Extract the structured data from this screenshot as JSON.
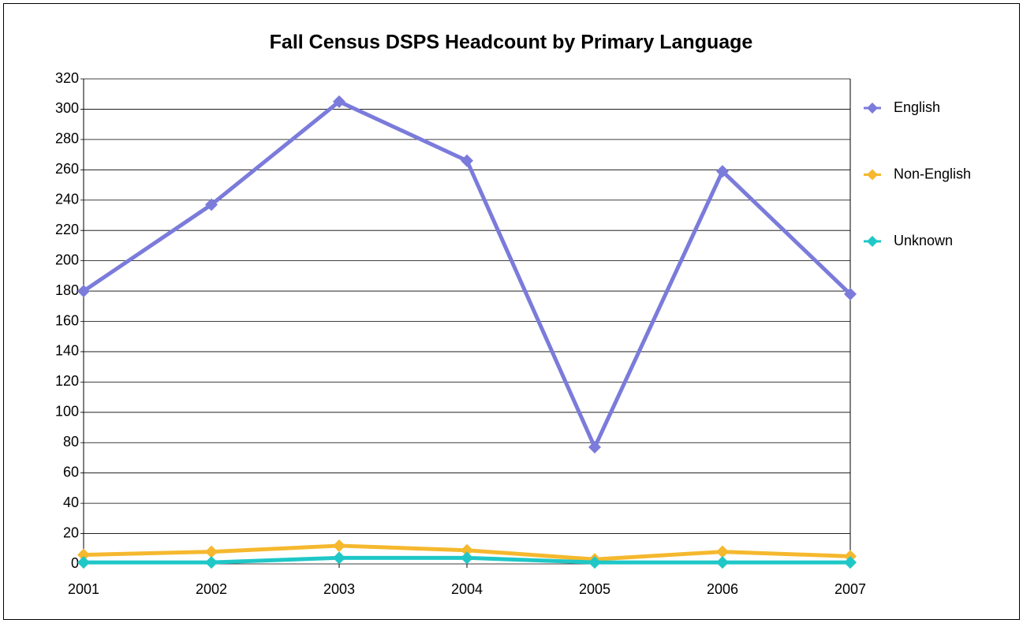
{
  "chart_data": {
    "type": "line",
    "title": "Fall Census DSPS Headcount by Primary Language",
    "categories": [
      "2001",
      "2002",
      "2003",
      "2004",
      "2005",
      "2006",
      "2007"
    ],
    "series": [
      {
        "name": "English",
        "color": "#7b7bdb",
        "values": [
          180,
          237,
          305,
          266,
          77,
          259,
          178
        ]
      },
      {
        "name": "Non-English",
        "color": "#f5b82e",
        "values": [
          6,
          8,
          12,
          9,
          3,
          8,
          5
        ]
      },
      {
        "name": "Unknown",
        "color": "#1fc7c7",
        "values": [
          1,
          1,
          4,
          4,
          1,
          1,
          1
        ]
      }
    ],
    "ylim": [
      0,
      320
    ],
    "yticks": [
      0,
      20,
      40,
      60,
      80,
      100,
      120,
      140,
      160,
      180,
      200,
      220,
      240,
      260,
      280,
      300,
      320
    ],
    "grid": true,
    "legend": "right"
  }
}
